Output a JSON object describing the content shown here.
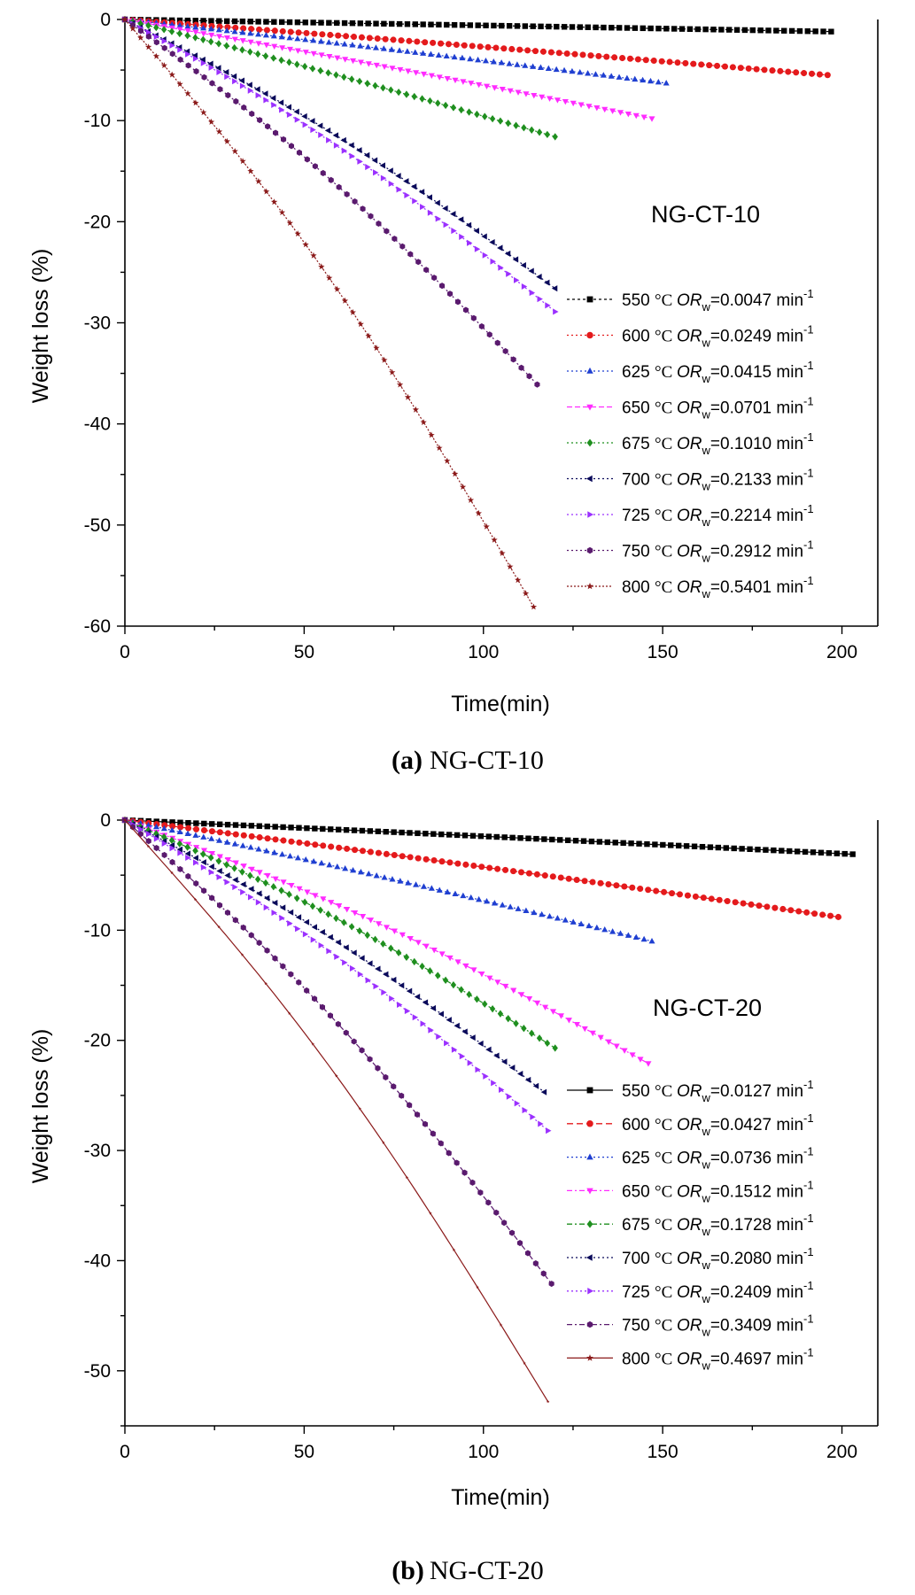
{
  "colors": {
    "550": "#000000",
    "600": "#e41a1c",
    "625": "#1f3fd1",
    "650": "#ff2bff",
    "675": "#1f8f1f",
    "700": "#0a0a5a",
    "725": "#9b30ff",
    "750": "#5a1a6e",
    "800": "#8b1a1a"
  },
  "chart_data": [
    {
      "type": "line",
      "panel_label": "NG-CT-10",
      "caption_letter": "(a)",
      "caption_text": "NG-CT-10",
      "xlabel": "Time(min)",
      "ylabel": "Weight loss  (%)",
      "xlim": [
        0,
        210
      ],
      "ylim": [
        -60,
        0
      ],
      "xticks": [
        0,
        50,
        100,
        150,
        200
      ],
      "yticks": [
        0,
        -10,
        -20,
        -30,
        -40,
        -50,
        -60
      ],
      "legend_position": "right",
      "series": [
        {
          "temp": "550",
          "unit": "°C",
          "or_label": "OR",
          "or_sub": "w",
          "or_value": "=0.0047 min",
          "or_unit_sup": "-1",
          "marker": "square",
          "end_x": 197,
          "end_y": -1.2
        },
        {
          "temp": "600",
          "unit": "°C",
          "or_label": "OR",
          "or_sub": "w",
          "or_value": "=0.0249 min",
          "or_unit_sup": "-1",
          "marker": "circle",
          "end_x": 196,
          "end_y": -5.5
        },
        {
          "temp": "625",
          "unit": "°C",
          "or_label": "OR",
          "or_sub": "w",
          "or_value": "=0.0415 min",
          "or_unit_sup": "-1",
          "marker": "triangle-up",
          "end_x": 151,
          "end_y": -6.3
        },
        {
          "temp": "650",
          "unit": "°C",
          "or_label": "OR",
          "or_sub": "w",
          "or_value": "=0.0701 min",
          "or_unit_sup": "-1",
          "marker": "triangle-down",
          "end_x": 147,
          "end_y": -9.8
        },
        {
          "temp": "675",
          "unit": "°C",
          "or_label": "OR",
          "or_sub": "w",
          "or_value": "=0.1010 min",
          "or_unit_sup": "-1",
          "marker": "diamond",
          "end_x": 120,
          "end_y": -11.6
        },
        {
          "temp": "700",
          "unit": "°C",
          "or_label": "OR",
          "or_sub": "w",
          "or_value": "=0.2133 min",
          "or_unit_sup": "-1",
          "marker": "triangle-left",
          "end_x": 120,
          "end_y": -26.6
        },
        {
          "temp": "725",
          "unit": "°C",
          "or_label": "OR",
          "or_sub": "w",
          "or_value": "=0.2214 min",
          "or_unit_sup": "-1",
          "marker": "triangle-right",
          "end_x": 120,
          "end_y": -28.9
        },
        {
          "temp": "750",
          "unit": "°C",
          "or_label": "OR",
          "or_sub": "w",
          "or_value": "=0.2912 min",
          "or_unit_sup": "-1",
          "marker": "hexagon",
          "end_x": 115,
          "end_y": -36.1
        },
        {
          "temp": "800",
          "unit": "°C",
          "or_label": "OR",
          "or_sub": "w",
          "or_value": "=0.5401 min",
          "or_unit_sup": "-1",
          "marker": "star",
          "end_x": 114,
          "end_y": -58.1
        }
      ]
    },
    {
      "type": "line",
      "panel_label": "NG-CT-20",
      "caption_letter": "(b)",
      "caption_text": "NG-CT-20",
      "xlabel": "Time(min)",
      "ylabel": "Weight loss  (%)",
      "xlim": [
        0,
        210
      ],
      "ylim": [
        -55,
        0
      ],
      "xticks": [
        0,
        50,
        100,
        150,
        200
      ],
      "yticks": [
        0,
        -10,
        -20,
        -30,
        -40,
        -50
      ],
      "legend_position": "right",
      "series": [
        {
          "temp": "550",
          "unit": "°C",
          "or_label": "OR",
          "or_sub": "w",
          "or_value": "=0.0127 min",
          "or_unit_sup": "-1",
          "marker": "square",
          "end_x": 203,
          "end_y": -3.1
        },
        {
          "temp": "600",
          "unit": "°C",
          "or_label": "OR",
          "or_sub": "w",
          "or_value": "=0.0427 min",
          "or_unit_sup": "-1",
          "marker": "circle",
          "end_x": 199,
          "end_y": -8.8
        },
        {
          "temp": "625",
          "unit": "°C",
          "or_label": "OR",
          "or_sub": "w",
          "or_value": "=0.0736 min",
          "or_unit_sup": "-1",
          "marker": "triangle-up",
          "end_x": 147,
          "end_y": -11.0
        },
        {
          "temp": "650",
          "unit": "°C",
          "or_label": "OR",
          "or_sub": "w",
          "or_value": "=0.1512 min",
          "or_unit_sup": "-1",
          "marker": "triangle-down",
          "end_x": 146,
          "end_y": -22.1
        },
        {
          "temp": "675",
          "unit": "°C",
          "or_label": "OR",
          "or_sub": "w",
          "or_value": "=0.1728 min",
          "or_unit_sup": "-1",
          "marker": "diamond",
          "end_x": 120,
          "end_y": -20.7
        },
        {
          "temp": "700",
          "unit": "°C",
          "or_label": "OR",
          "or_sub": "w",
          "or_value": "=0.2080 min",
          "or_unit_sup": "-1",
          "marker": "triangle-left",
          "end_x": 117,
          "end_y": -24.7
        },
        {
          "temp": "725",
          "unit": "°C",
          "or_label": "OR",
          "or_sub": "w",
          "or_value": "=0.2409 min",
          "or_unit_sup": "-1",
          "marker": "triangle-right",
          "end_x": 118,
          "end_y": -28.2
        },
        {
          "temp": "750",
          "unit": "°C",
          "or_label": "OR",
          "or_sub": "w",
          "or_value": "=0.3409 min",
          "or_unit_sup": "-1",
          "marker": "hexagon",
          "end_x": 119,
          "end_y": -42.1
        },
        {
          "temp": "800",
          "unit": "°C",
          "or_label": "OR",
          "or_sub": "w",
          "or_value": "=0.4697 min",
          "or_unit_sup": "-1",
          "marker": "star",
          "end_x": 118,
          "end_y": -52.8
        }
      ]
    }
  ]
}
